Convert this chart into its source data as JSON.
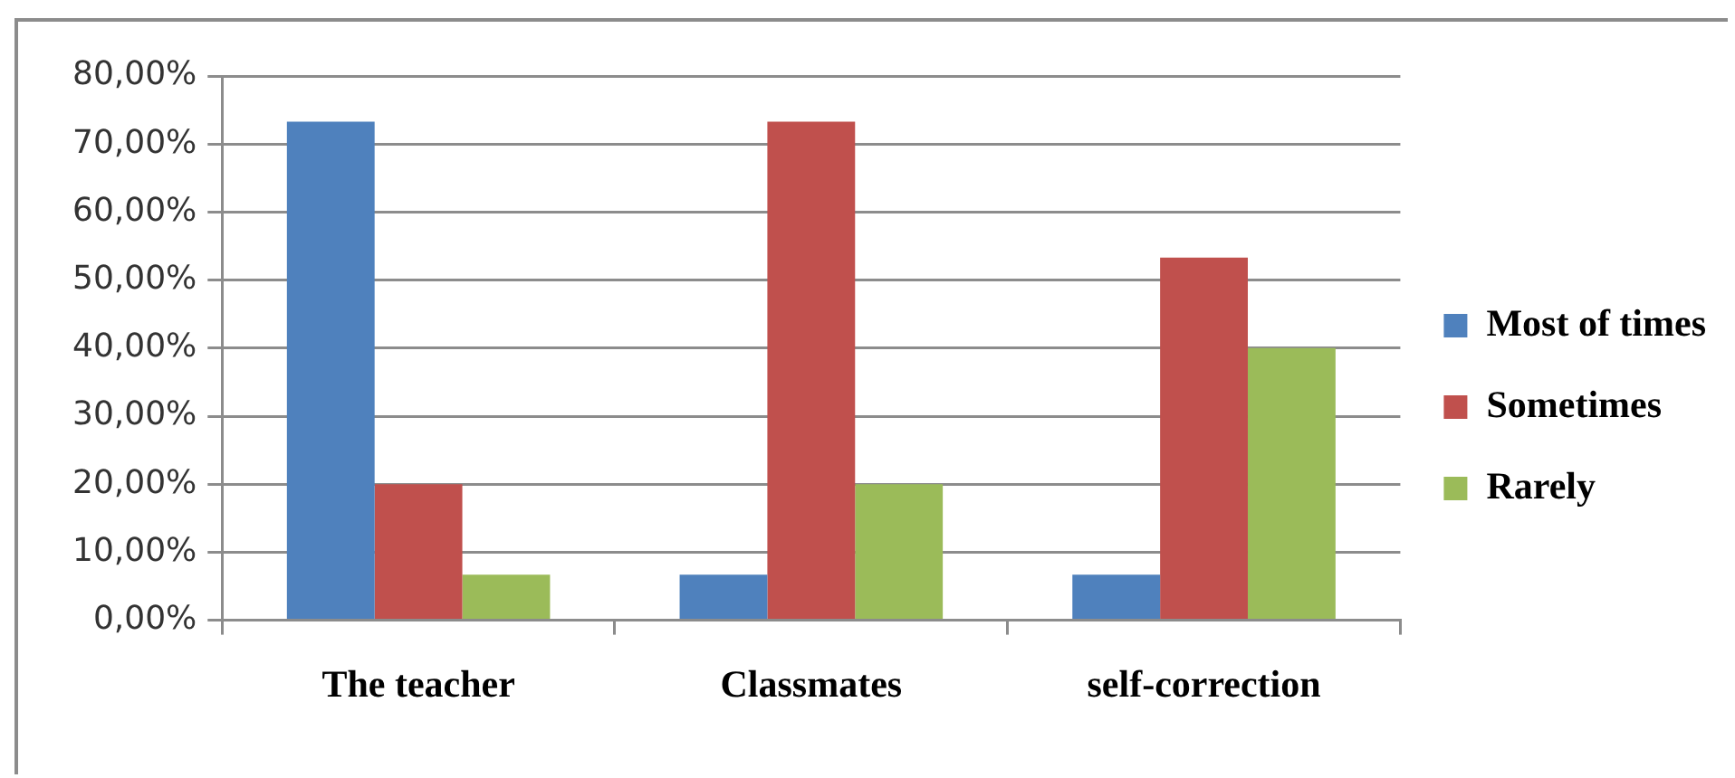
{
  "chart_data": {
    "type": "bar",
    "categories": [
      "The teacher",
      "Classmates",
      "self-correction"
    ],
    "series": [
      {
        "name": "Most of times",
        "color": "#4f81bd",
        "values": [
          73.3,
          6.7,
          6.7
        ]
      },
      {
        "name": "Sometimes",
        "color": "#c0504d",
        "values": [
          20,
          73.3,
          53.3
        ]
      },
      {
        "name": "Rarely",
        "color": "#9bbb59",
        "values": [
          6.7,
          20,
          40
        ]
      }
    ],
    "ylim": [
      0,
      80
    ],
    "yticks": [
      {
        "value": 0,
        "label": "0,00%"
      },
      {
        "value": 10,
        "label": "10,00%"
      },
      {
        "value": 20,
        "label": "20,00%"
      },
      {
        "value": 30,
        "label": "30,00%"
      },
      {
        "value": 40,
        "label": "40,00%"
      },
      {
        "value": 50,
        "label": "50,00%"
      },
      {
        "value": 60,
        "label": "60,00%"
      },
      {
        "value": 70,
        "label": "70,00%"
      },
      {
        "value": 80,
        "label": "80,00%"
      }
    ],
    "grid": "y",
    "legend": "right"
  }
}
